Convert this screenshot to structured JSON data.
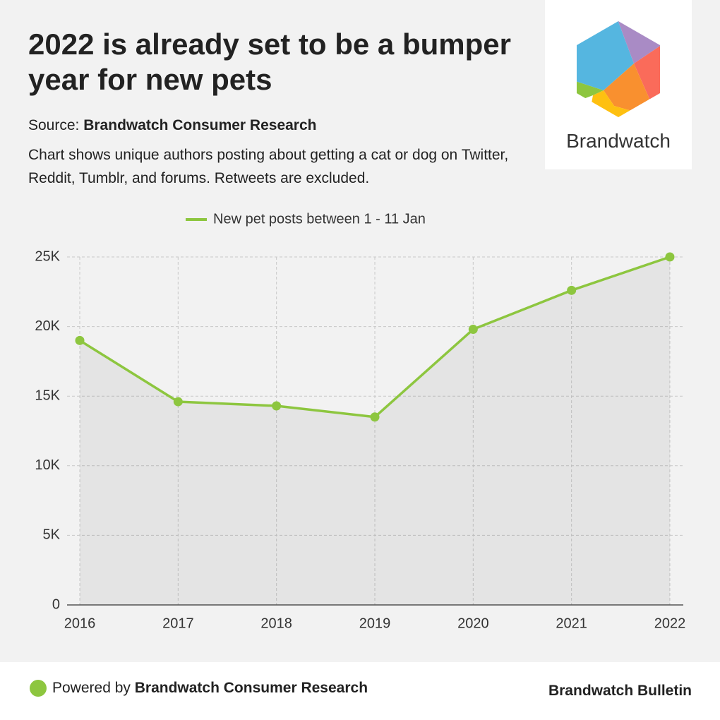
{
  "chart_data": {
    "type": "line",
    "title": "2022 is already set to be a bumper year for new pets",
    "categories": [
      "2016",
      "2017",
      "2018",
      "2019",
      "2020",
      "2021",
      "2022"
    ],
    "series": [
      {
        "name": "New pet posts between 1 - 11 Jan",
        "color": "#8dc63f",
        "values": [
          19000,
          14600,
          14300,
          13500,
          19800,
          22600,
          25000
        ]
      }
    ],
    "ylim": [
      0,
      25000
    ],
    "yticks": [
      0,
      {
        "value": 5000,
        "label": "5K"
      },
      {
        "value": 10000,
        "label": "10K"
      },
      {
        "value": 15000,
        "label": "15K"
      },
      {
        "value": 20000,
        "label": "20K"
      },
      {
        "value": 25000,
        "label": "25K"
      }
    ],
    "grid": true,
    "legend": "top",
    "area": true
  },
  "header": {
    "source_prefix": "Source:",
    "source": "Brandwatch Consumer Research",
    "description": "Chart shows unique authors posting about getting a cat or dog on Twitter, Reddit, Tumblr, and forums. Retweets are excluded."
  },
  "logo": {
    "text": "Brandwatch"
  },
  "footer": {
    "prefix": "Powered by",
    "source": "Brandwatch Consumer Research",
    "brand": "Brandwatch Bulletin"
  }
}
